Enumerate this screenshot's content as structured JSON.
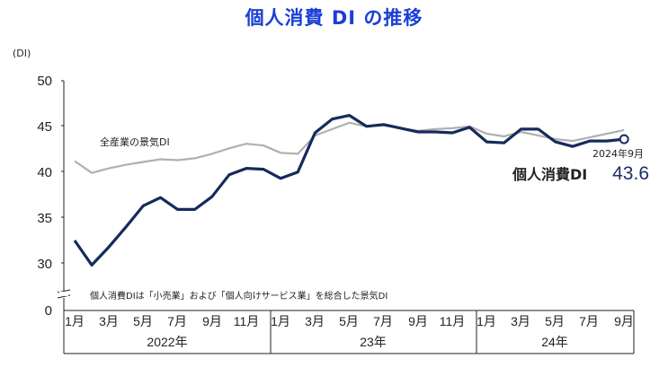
{
  "chart_title": "個人消費 DI の推移",
  "chart_data": {
    "type": "line",
    "title": "個人消費 DI の推移",
    "ylabel": "(DI)",
    "ylim": [
      0,
      50
    ],
    "y_ticks": [
      "0",
      "30",
      "35",
      "40",
      "45",
      "50"
    ],
    "axis_break": true,
    "x_tick_labels": [
      "1月",
      "3月",
      "5月",
      "7月",
      "9月",
      "11月",
      "1月",
      "3月",
      "5月",
      "7月",
      "9月",
      "11月",
      "1月",
      "3月",
      "5月",
      "7月",
      "9月"
    ],
    "year_labels": [
      "2022年",
      "23年",
      "24年"
    ],
    "months": [
      "2022-01",
      "2022-02",
      "2022-03",
      "2022-04",
      "2022-05",
      "2022-06",
      "2022-07",
      "2022-08",
      "2022-09",
      "2022-10",
      "2022-11",
      "2022-12",
      "2023-01",
      "2023-02",
      "2023-03",
      "2023-04",
      "2023-05",
      "2023-06",
      "2023-07",
      "2023-08",
      "2023-09",
      "2023-10",
      "2023-11",
      "2023-12",
      "2024-01",
      "2024-02",
      "2024-03",
      "2024-04",
      "2024-05",
      "2024-06",
      "2024-07",
      "2024-08",
      "2024-09"
    ],
    "series": [
      {
        "name": "全産業の景気DI",
        "color": "#b0b0b0",
        "values": [
          41.2,
          39.9,
          40.4,
          40.8,
          41.1,
          41.4,
          41.3,
          41.5,
          42.0,
          42.6,
          43.1,
          42.9,
          42.1,
          42.0,
          44.0,
          44.7,
          45.4,
          45.0,
          45.1,
          44.8,
          44.5,
          44.7,
          44.8,
          45.0,
          44.2,
          43.9,
          44.4,
          44.0,
          43.6,
          43.4,
          43.8,
          44.2,
          44.6
        ]
      },
      {
        "name": "個人消費DI",
        "color": "#162a5c",
        "values": [
          32.5,
          29.8,
          31.8,
          34.0,
          36.3,
          37.2,
          35.9,
          35.9,
          37.3,
          39.7,
          40.4,
          40.3,
          39.3,
          40.0,
          44.3,
          45.8,
          46.2,
          45.0,
          45.2,
          44.8,
          44.4,
          44.4,
          44.3,
          44.9,
          43.3,
          43.2,
          44.7,
          44.7,
          43.3,
          42.8,
          43.4,
          43.4,
          43.6
        ]
      }
    ],
    "annotation": {
      "date": "2024年9月",
      "series_label": "個人消費DI",
      "value": "43.6"
    },
    "note": "個人消費DIは「小売業」および「個人向けサービス業」を総合した景気DI",
    "legend_position": "inline labels (gray series label above its line at left)"
  }
}
